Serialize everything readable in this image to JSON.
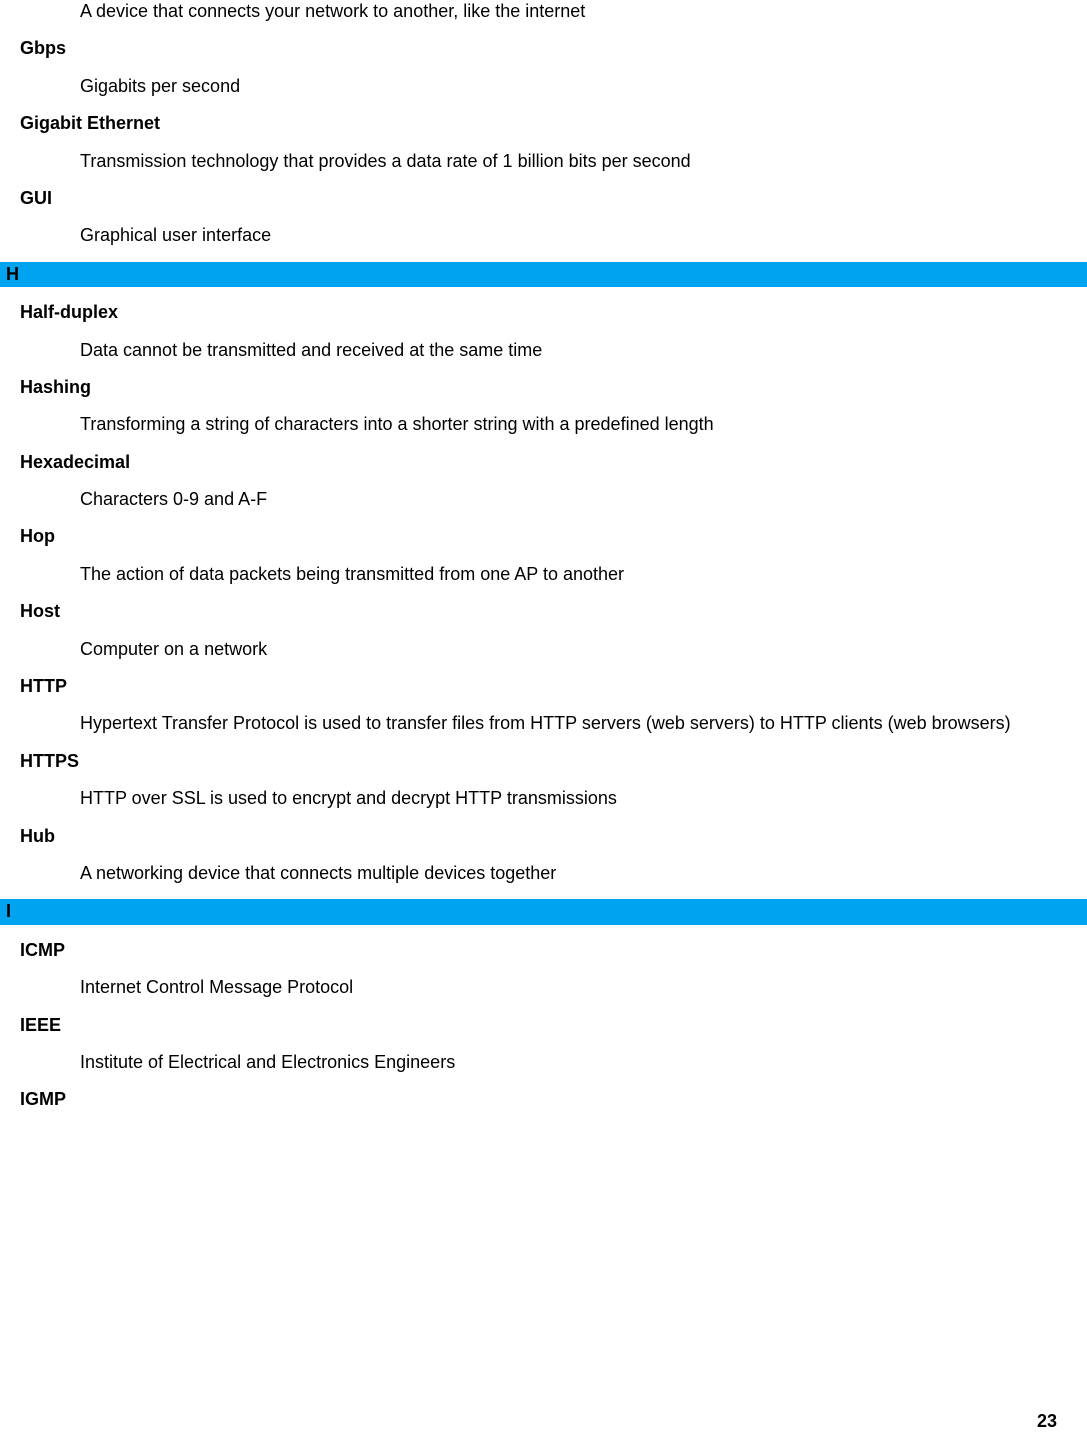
{
  "colors": {
    "section_header_bg": "#00a3ef",
    "text": "#000000",
    "background": "#ffffff"
  },
  "page_number": "23",
  "sections": [
    {
      "letter": null,
      "entries": [
        {
          "term": null,
          "definition": "A device that connects your network to another, like the internet"
        },
        {
          "term": "Gbps",
          "definition": "Gigabits per second"
        },
        {
          "term": "Gigabit Ethernet",
          "definition": "Transmission technology that provides a data rate of 1 billion bits per second"
        },
        {
          "term": "GUI",
          "definition": "Graphical user interface"
        }
      ]
    },
    {
      "letter": "H",
      "entries": [
        {
          "term": "Half-duplex",
          "definition": "Data cannot be transmitted and received at the same time"
        },
        {
          "term": "Hashing",
          "definition": "Transforming a string of characters into a shorter string with a predefined length"
        },
        {
          "term": "Hexadecimal",
          "definition": "Characters 0-9 and A-F"
        },
        {
          "term": "Hop",
          "definition": "The action of data packets being transmitted from one AP to another"
        },
        {
          "term": "Host",
          "definition": "Computer on a network"
        },
        {
          "term": "HTTP",
          "definition": "Hypertext Transfer Protocol is used to transfer files from HTTP servers (web servers) to HTTP clients (web browsers)"
        },
        {
          "term": "HTTPS",
          "definition": "HTTP over SSL is used to encrypt and decrypt HTTP transmissions"
        },
        {
          "term": "Hub",
          "definition": "A networking device that connects multiple devices together"
        }
      ]
    },
    {
      "letter": "I",
      "entries": [
        {
          "term": "ICMP",
          "definition": "Internet Control Message Protocol"
        },
        {
          "term": "IEEE",
          "definition": "Institute of Electrical and Electronics Engineers"
        },
        {
          "term": "IGMP",
          "definition": null
        }
      ]
    }
  ]
}
